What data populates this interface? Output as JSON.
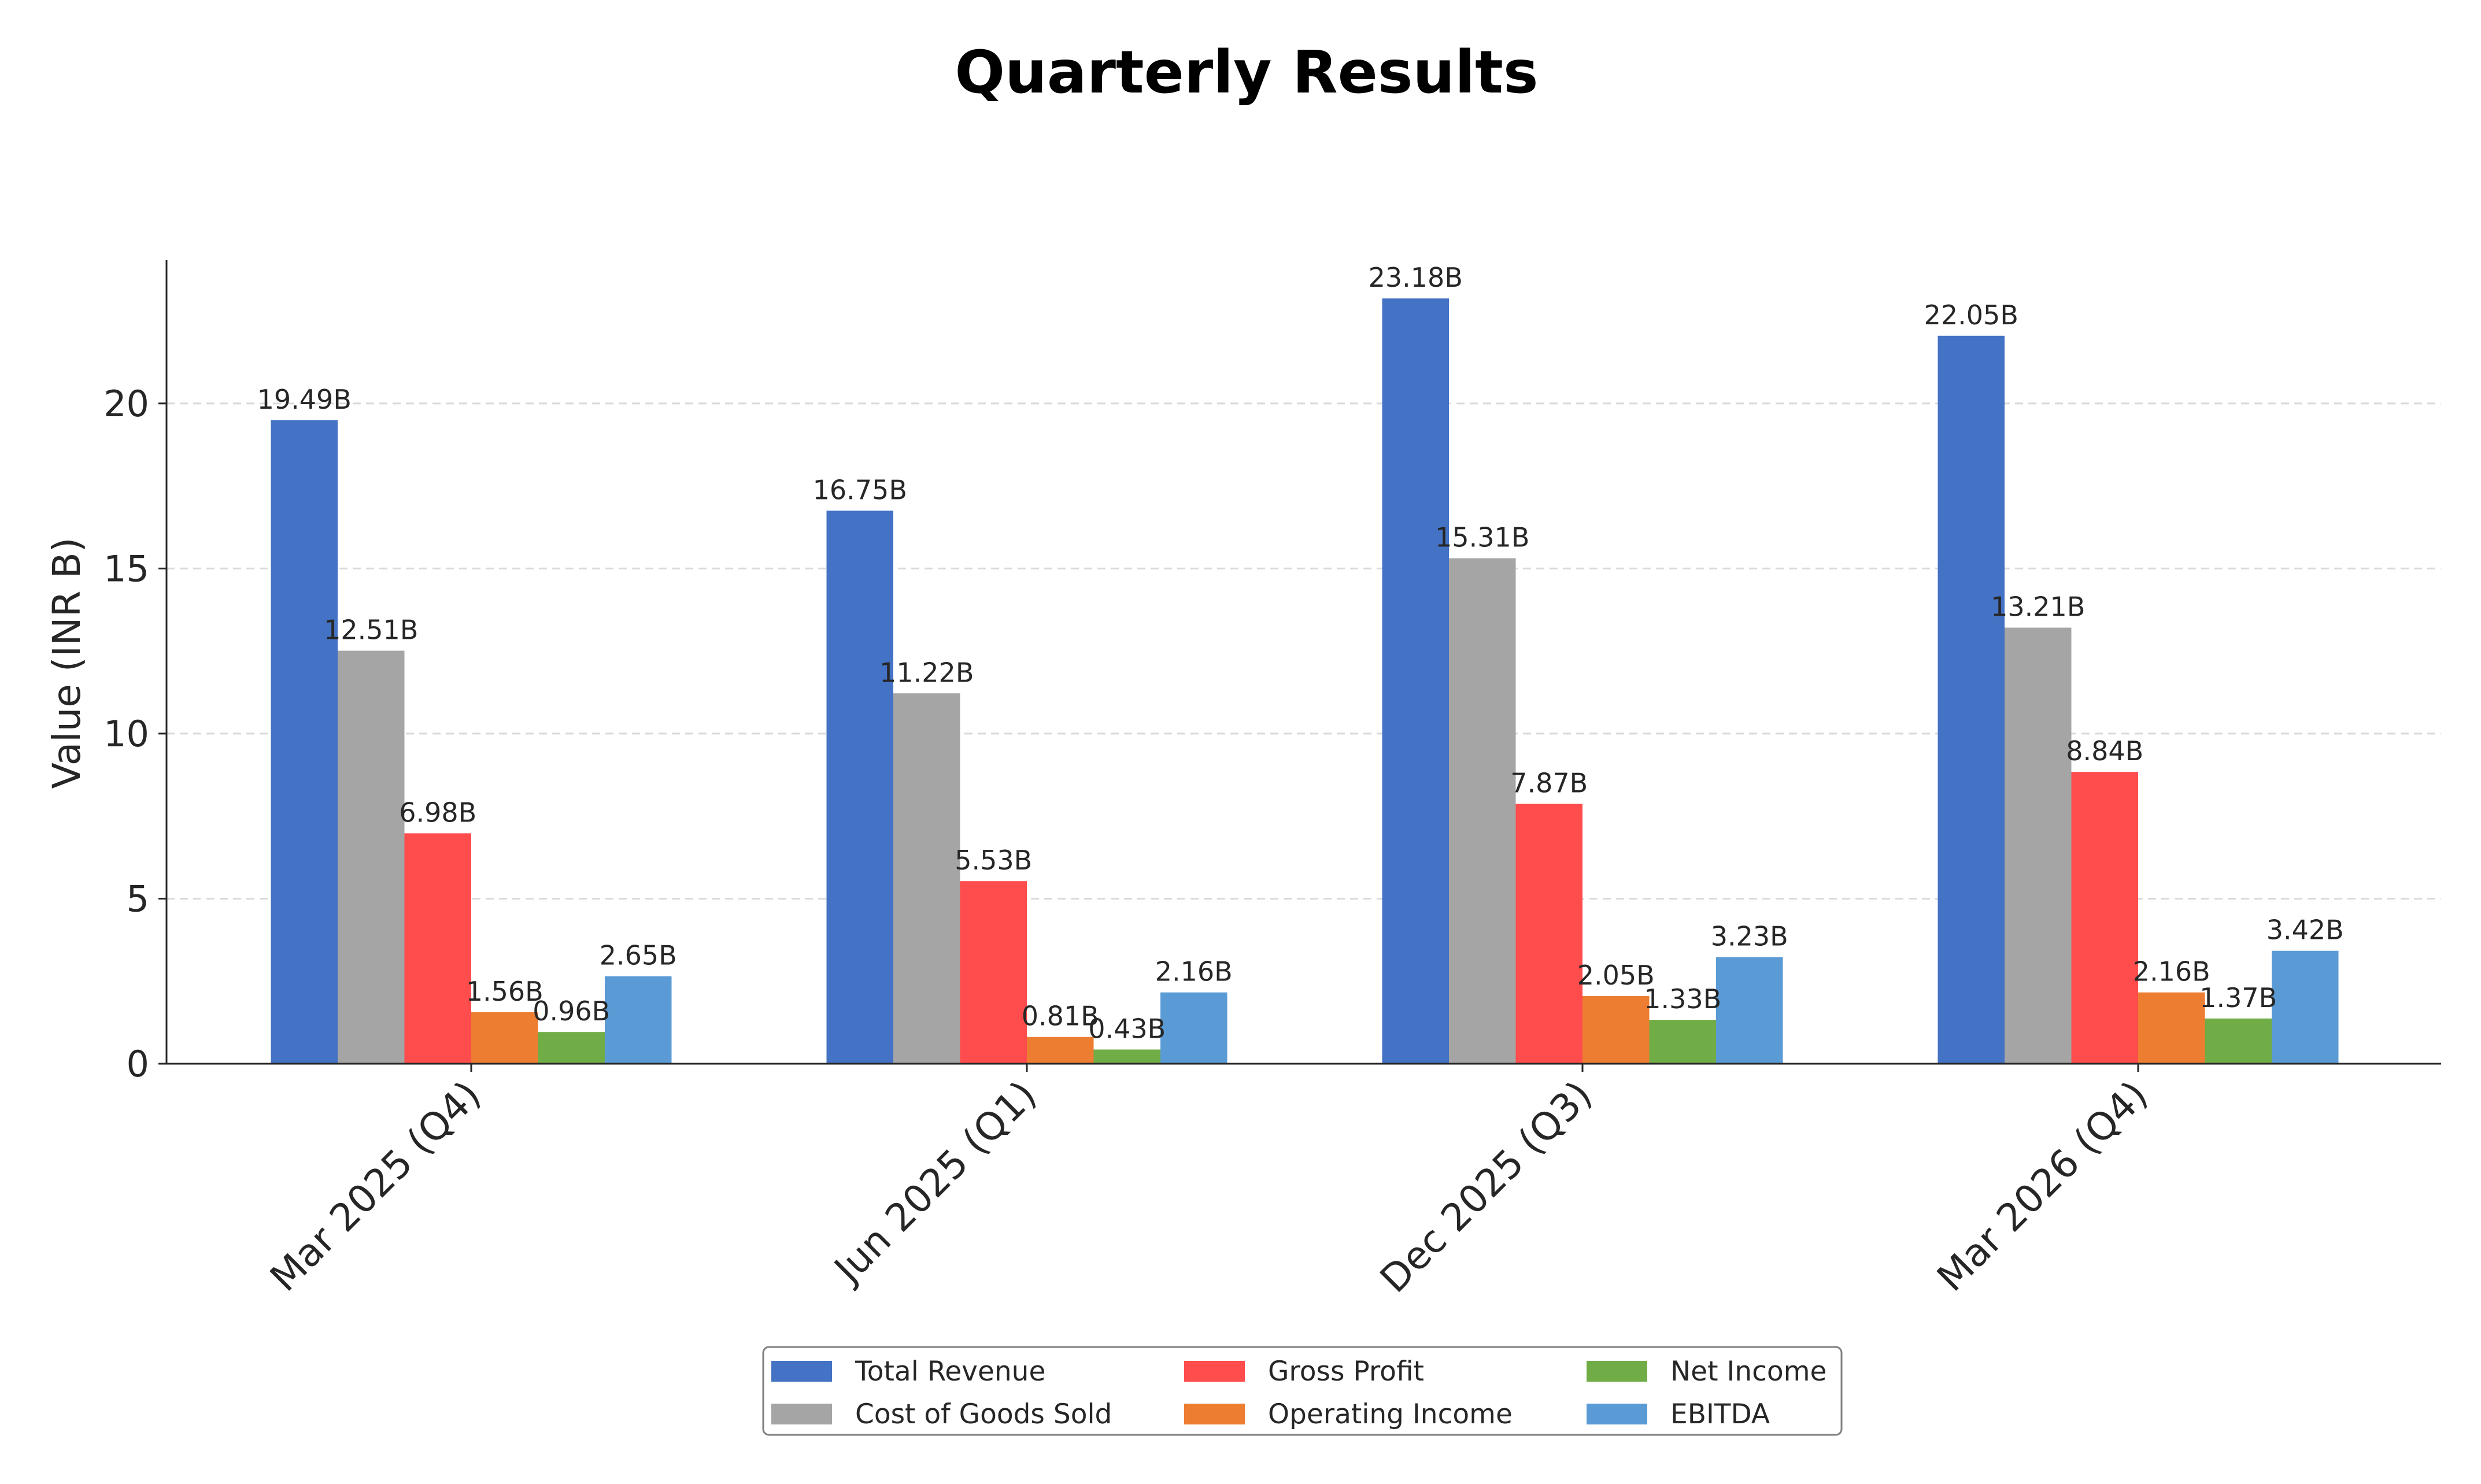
{
  "chart_data": {
    "type": "bar",
    "title": "Quarterly Results",
    "ylabel": "Value (INR B)",
    "xlabel": "",
    "categories": [
      "Mar 2025 (Q4)",
      "Jun 2025 (Q1)",
      "Dec 2025 (Q3)",
      "Mar 2026 (Q4)"
    ],
    "ylim": [
      0,
      24.34
    ],
    "yticks": [
      0,
      5,
      10,
      15,
      20
    ],
    "grid": "y-dashed",
    "legend_position": "bottom-center",
    "value_label_suffix": "B",
    "series": [
      {
        "name": "Total Revenue",
        "color": "#4472C4",
        "values": [
          19.49,
          16.75,
          23.18,
          22.05
        ]
      },
      {
        "name": "Cost of Goods Sold",
        "color": "#A5A5A5",
        "values": [
          12.51,
          11.22,
          15.31,
          13.21
        ]
      },
      {
        "name": "Gross Profit",
        "color": "#FF4C4C",
        "values": [
          6.98,
          5.53,
          7.87,
          8.84
        ]
      },
      {
        "name": "Operating Income",
        "color": "#ED7D31",
        "values": [
          1.56,
          0.81,
          2.05,
          2.16
        ]
      },
      {
        "name": "Net Income",
        "color": "#70AD47",
        "values": [
          0.96,
          0.43,
          1.33,
          1.37
        ]
      },
      {
        "name": "EBITDA",
        "color": "#5B9BD5",
        "values": [
          2.65,
          2.16,
          3.23,
          3.42
        ]
      }
    ],
    "data_labels": [
      [
        "19.49B",
        "16.75B",
        "23.18B",
        "22.05B"
      ],
      [
        "12.51B",
        "11.22B",
        "15.31B",
        "13.21B"
      ],
      [
        "6.98B",
        "5.53B",
        "7.87B",
        "8.84B"
      ],
      [
        "1.56B",
        "0.81B",
        "2.05B",
        "2.16B"
      ],
      [
        "0.96B",
        "0.43B",
        "1.33B",
        "1.37B"
      ],
      [
        "2.65B",
        "2.16B",
        "3.23B",
        "3.42B"
      ]
    ]
  }
}
